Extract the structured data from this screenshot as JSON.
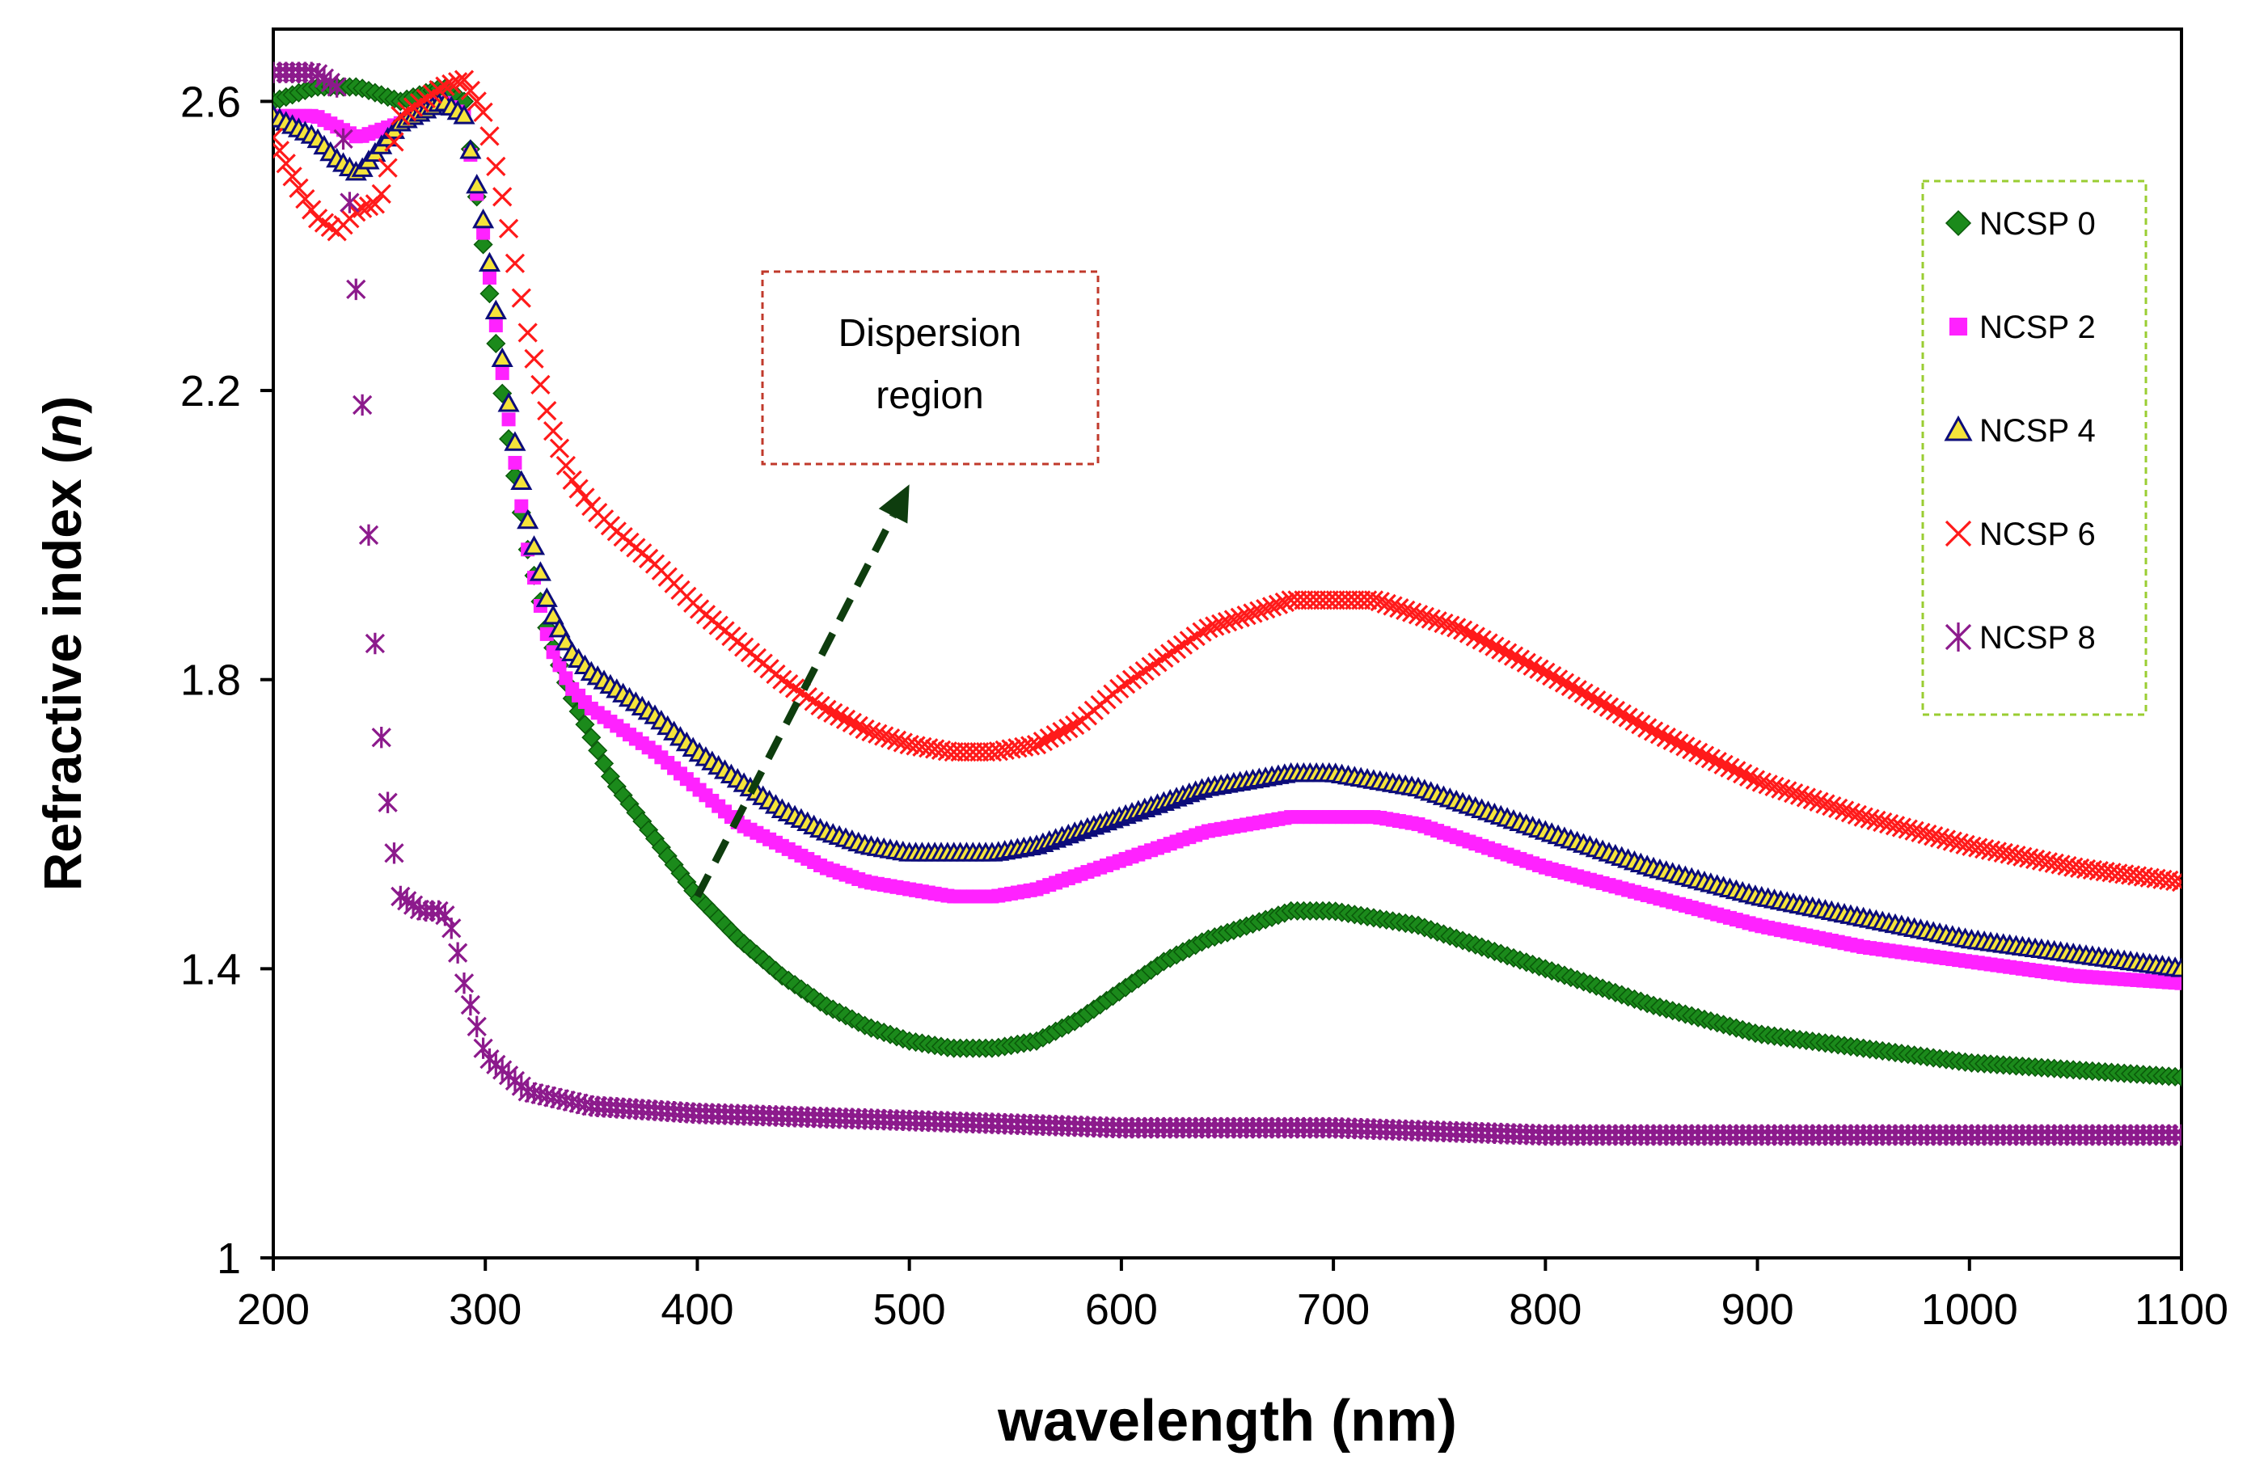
{
  "chart_data": {
    "type": "scatter",
    "title": "",
    "xlabel": "wavelength (nm)",
    "ylabel": "Refractive index (",
    "ylabel_symbol": "n",
    "ylabel_close": ")",
    "xlim": [
      200,
      1100
    ],
    "ylim": [
      1,
      2.7
    ],
    "xticks": [
      200,
      300,
      400,
      500,
      600,
      700,
      800,
      900,
      1000,
      1100
    ],
    "xtick_labels": [
      "200",
      "300",
      "400",
      "500",
      "600",
      "700",
      "800",
      "900",
      "1000",
      "1100"
    ],
    "yticks": [
      1,
      1.4,
      1.8,
      2.2,
      2.6
    ],
    "ytick_labels": [
      "1",
      "1.4",
      "1.8",
      "2.2",
      "2.6"
    ],
    "grid": false,
    "legend_position": "top-right",
    "annotation": {
      "line1": "Dispersion",
      "line2": "region",
      "arrow_from": [
        400,
        1.5
      ],
      "arrow_to": [
        500,
        2.07
      ]
    },
    "series": [
      {
        "name": "NCSP 0",
        "color": "#1b8a1b",
        "marker": "diamond",
        "x": [
          200,
          220,
          240,
          260,
          280,
          290,
          300,
          310,
          320,
          330,
          340,
          350,
          360,
          380,
          400,
          420,
          440,
          460,
          480,
          500,
          520,
          540,
          560,
          580,
          600,
          620,
          640,
          660,
          680,
          700,
          720,
          740,
          760,
          780,
          800,
          850,
          900,
          950,
          1000,
          1050,
          1100
        ],
        "y": [
          2.6,
          2.62,
          2.62,
          2.6,
          2.62,
          2.6,
          2.38,
          2.15,
          1.98,
          1.86,
          1.78,
          1.72,
          1.66,
          1.58,
          1.5,
          1.44,
          1.39,
          1.35,
          1.32,
          1.3,
          1.29,
          1.29,
          1.3,
          1.33,
          1.37,
          1.41,
          1.44,
          1.46,
          1.48,
          1.48,
          1.47,
          1.46,
          1.44,
          1.42,
          1.4,
          1.35,
          1.31,
          1.29,
          1.27,
          1.26,
          1.25
        ]
      },
      {
        "name": "NCSP 2",
        "color": "#ff22ff",
        "marker": "square",
        "x": [
          200,
          220,
          240,
          260,
          280,
          290,
          300,
          310,
          320,
          330,
          340,
          350,
          360,
          380,
          400,
          420,
          440,
          460,
          480,
          500,
          520,
          540,
          560,
          580,
          600,
          620,
          640,
          660,
          680,
          700,
          720,
          740,
          760,
          780,
          800,
          850,
          900,
          950,
          1000,
          1050,
          1100
        ],
        "y": [
          2.58,
          2.58,
          2.55,
          2.57,
          2.6,
          2.58,
          2.4,
          2.18,
          1.98,
          1.85,
          1.79,
          1.76,
          1.74,
          1.7,
          1.65,
          1.6,
          1.57,
          1.54,
          1.52,
          1.51,
          1.5,
          1.5,
          1.51,
          1.53,
          1.55,
          1.57,
          1.59,
          1.6,
          1.61,
          1.61,
          1.61,
          1.6,
          1.58,
          1.56,
          1.54,
          1.5,
          1.46,
          1.43,
          1.41,
          1.39,
          1.38
        ]
      },
      {
        "name": "NCSP 4",
        "color": "#0c0c7a",
        "marker": "triangle",
        "x": [
          200,
          220,
          230,
          240,
          260,
          280,
          290,
          300,
          310,
          320,
          330,
          340,
          350,
          360,
          380,
          400,
          420,
          440,
          460,
          480,
          500,
          520,
          540,
          560,
          580,
          600,
          620,
          640,
          660,
          680,
          700,
          720,
          740,
          760,
          780,
          800,
          850,
          900,
          950,
          1000,
          1050,
          1100
        ],
        "y": [
          2.58,
          2.55,
          2.52,
          2.5,
          2.57,
          2.6,
          2.58,
          2.42,
          2.2,
          2.02,
          1.9,
          1.84,
          1.81,
          1.79,
          1.75,
          1.7,
          1.66,
          1.62,
          1.59,
          1.57,
          1.56,
          1.56,
          1.56,
          1.57,
          1.59,
          1.61,
          1.63,
          1.65,
          1.66,
          1.67,
          1.67,
          1.66,
          1.65,
          1.63,
          1.61,
          1.59,
          1.54,
          1.5,
          1.47,
          1.44,
          1.42,
          1.4
        ]
      },
      {
        "name": "NCSP 6",
        "color": "#ff1a1a",
        "marker": "x",
        "x": [
          200,
          210,
          220,
          230,
          240,
          250,
          260,
          280,
          290,
          300,
          310,
          320,
          330,
          340,
          350,
          360,
          380,
          400,
          420,
          440,
          460,
          480,
          500,
          520,
          540,
          560,
          580,
          600,
          620,
          640,
          660,
          680,
          700,
          720,
          740,
          760,
          780,
          800,
          850,
          900,
          950,
          1000,
          1050,
          1100
        ],
        "y": [
          2.55,
          2.49,
          2.44,
          2.42,
          2.45,
          2.46,
          2.58,
          2.62,
          2.63,
          2.58,
          2.44,
          2.28,
          2.16,
          2.08,
          2.04,
          2.01,
          1.96,
          1.9,
          1.85,
          1.8,
          1.76,
          1.73,
          1.71,
          1.7,
          1.7,
          1.71,
          1.74,
          1.79,
          1.83,
          1.87,
          1.89,
          1.91,
          1.91,
          1.91,
          1.89,
          1.87,
          1.84,
          1.81,
          1.73,
          1.66,
          1.61,
          1.57,
          1.54,
          1.52
        ]
      },
      {
        "name": "NCSP 8",
        "color": "#8c1a8c",
        "marker": "star",
        "x": [
          200,
          210,
          220,
          230,
          235,
          240,
          245,
          250,
          255,
          260,
          270,
          280,
          285,
          290,
          300,
          320,
          350,
          400,
          500,
          600,
          700,
          800,
          900,
          1000,
          1100
        ],
        "y": [
          2.64,
          2.64,
          2.64,
          2.62,
          2.5,
          2.3,
          2.0,
          1.75,
          1.6,
          1.5,
          1.48,
          1.48,
          1.45,
          1.38,
          1.28,
          1.23,
          1.21,
          1.2,
          1.19,
          1.18,
          1.18,
          1.17,
          1.17,
          1.17,
          1.17
        ]
      }
    ]
  }
}
